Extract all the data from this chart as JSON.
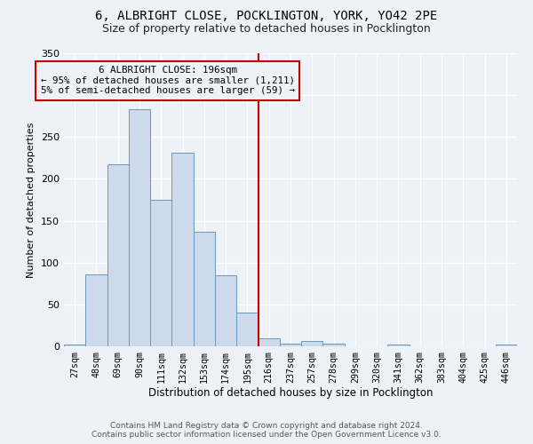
{
  "title1": "6, ALBRIGHT CLOSE, POCKLINGTON, YORK, YO42 2PE",
  "title2": "Size of property relative to detached houses in Pocklington",
  "xlabel": "Distribution of detached houses by size in Pocklington",
  "ylabel": "Number of detached properties",
  "categories": [
    "27sqm",
    "48sqm",
    "69sqm",
    "90sqm",
    "111sqm",
    "132sqm",
    "153sqm",
    "174sqm",
    "195sqm",
    "216sqm",
    "237sqm",
    "257sqm",
    "278sqm",
    "299sqm",
    "320sqm",
    "341sqm",
    "362sqm",
    "383sqm",
    "404sqm",
    "425sqm",
    "446sqm"
  ],
  "values": [
    2,
    86,
    217,
    283,
    175,
    231,
    137,
    85,
    40,
    10,
    3,
    6,
    3,
    0,
    0,
    2,
    0,
    0,
    0,
    0,
    2
  ],
  "bar_color": "#cddaeb",
  "bar_edgecolor": "#6699bb",
  "vline_index": 8,
  "vline_color": "#cc0000",
  "annotation_line1": "6 ALBRIGHT CLOSE: 196sqm",
  "annotation_line2": "← 95% of detached houses are smaller (1,211)",
  "annotation_line3": "5% of semi-detached houses are larger (59) →",
  "annotation_box_color": "#cc0000",
  "annotation_bg": "#eef2f8",
  "ylim": [
    0,
    350
  ],
  "yticks": [
    0,
    50,
    100,
    150,
    200,
    250,
    300,
    350
  ],
  "footer1": "Contains HM Land Registry data © Crown copyright and database right 2024.",
  "footer2": "Contains public sector information licensed under the Open Government Licence v3.0.",
  "bg_color": "#eef2f8",
  "grid_color": "#ffffff",
  "bar_width": 1.0
}
